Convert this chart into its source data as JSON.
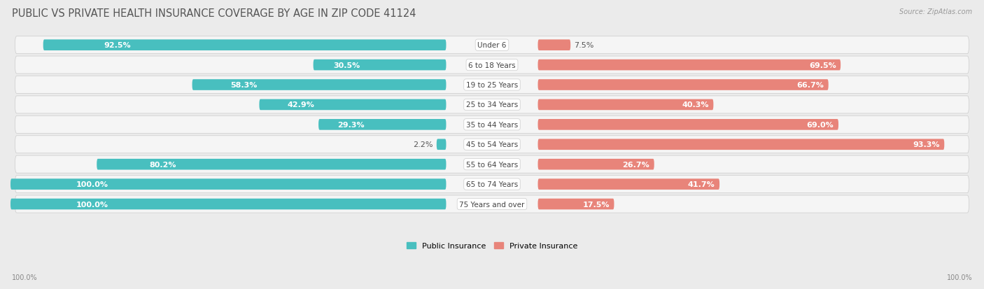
{
  "title": "PUBLIC VS PRIVATE HEALTH INSURANCE COVERAGE BY AGE IN ZIP CODE 41124",
  "source": "Source: ZipAtlas.com",
  "categories": [
    "Under 6",
    "6 to 18 Years",
    "19 to 25 Years",
    "25 to 34 Years",
    "35 to 44 Years",
    "45 to 54 Years",
    "55 to 64 Years",
    "65 to 74 Years",
    "75 Years and over"
  ],
  "public_values": [
    92.5,
    30.5,
    58.3,
    42.9,
    29.3,
    2.2,
    80.2,
    100.0,
    100.0
  ],
  "private_values": [
    7.5,
    69.5,
    66.7,
    40.3,
    69.0,
    93.3,
    26.7,
    41.7,
    17.5
  ],
  "public_color": "#48BFBF",
  "private_color": "#E8847A",
  "public_label": "Public Insurance",
  "private_label": "Private Insurance",
  "bg_color": "#ebebeb",
  "row_bg_color": "#f5f5f5",
  "row_alt_color": "#eeeeee",
  "max_value": 100.0,
  "title_fontsize": 10.5,
  "label_fontsize": 8.0,
  "val_fontsize": 8.0
}
